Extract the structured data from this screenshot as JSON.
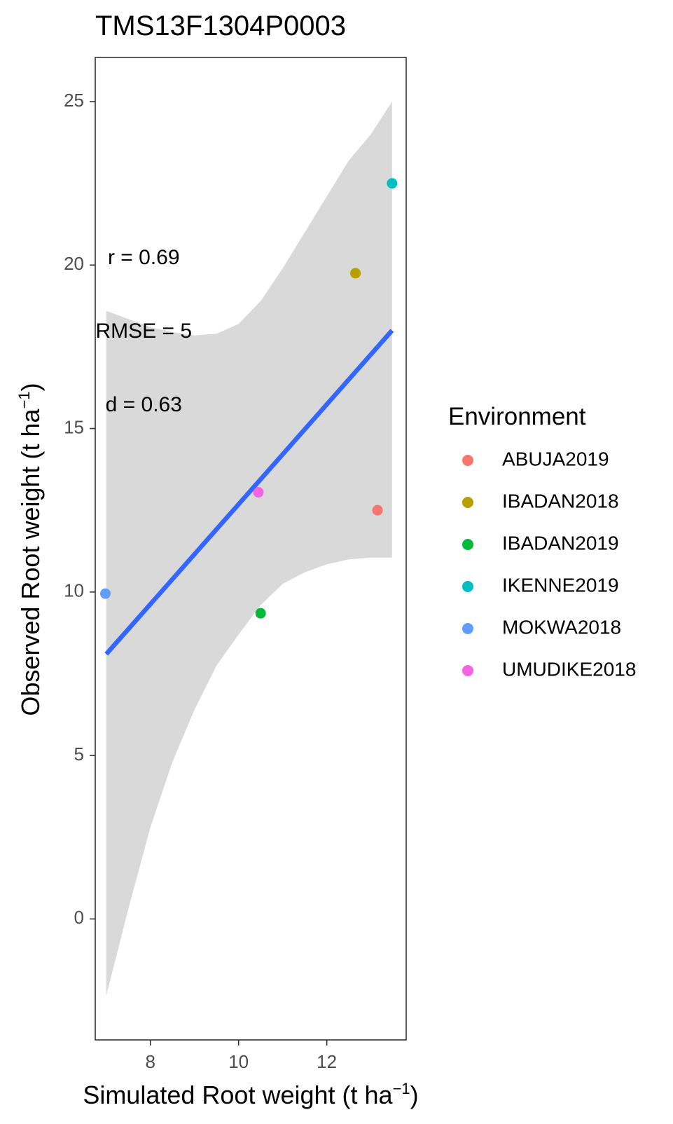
{
  "chart_data": {
    "type": "scatter",
    "title": "TMS13F1304P0003",
    "xlabel": "Simulated Root weight",
    "ylabel": "Observed Root weight",
    "unit": {
      "base": "t ha",
      "exp": "−1"
    },
    "xlim": [
      6.75,
      13.8
    ],
    "ylim": [
      -3.7,
      26.35
    ],
    "xticks": [
      8,
      10,
      12
    ],
    "yticks": [
      0,
      5,
      10,
      15,
      20,
      25
    ],
    "grid": false,
    "legend": {
      "title": "Environment",
      "position": "right"
    },
    "series": [
      {
        "name": "ABUJA2019",
        "color": "#F8766D",
        "points": [
          {
            "x": 13.15,
            "y": 12.5
          }
        ]
      },
      {
        "name": "IBADAN2018",
        "color": "#B79F00",
        "points": [
          {
            "x": 12.65,
            "y": 19.75
          }
        ]
      },
      {
        "name": "IBADAN2019",
        "color": "#00BA38",
        "points": [
          {
            "x": 10.5,
            "y": 9.35
          }
        ]
      },
      {
        "name": "IKENNE2019",
        "color": "#00BFC4",
        "points": [
          {
            "x": 13.48,
            "y": 22.5
          }
        ]
      },
      {
        "name": "MOKWA2018",
        "color": "#619CFF",
        "points": [
          {
            "x": 6.98,
            "y": 9.95
          }
        ]
      },
      {
        "name": "UMUDIKE2018",
        "color": "#F564E3",
        "points": [
          {
            "x": 10.45,
            "y": 13.05
          }
        ]
      }
    ],
    "fit": {
      "color": "#3366FF",
      "line": [
        {
          "x": 7.0,
          "y": 8.1
        },
        {
          "x": 13.48,
          "y": 18.0
        }
      ],
      "ci_band_color": "#d9d9d9",
      "ci_upper": [
        {
          "x": 7.0,
          "y": 18.6
        },
        {
          "x": 7.5,
          "y": 18.35
        },
        {
          "x": 8.0,
          "y": 18.1
        },
        {
          "x": 8.5,
          "y": 17.95
        },
        {
          "x": 9.0,
          "y": 17.85
        },
        {
          "x": 9.5,
          "y": 17.9
        },
        {
          "x": 10.0,
          "y": 18.2
        },
        {
          "x": 10.5,
          "y": 18.9
        },
        {
          "x": 11.0,
          "y": 19.9
        },
        {
          "x": 11.5,
          "y": 21.0
        },
        {
          "x": 12.0,
          "y": 22.1
        },
        {
          "x": 12.5,
          "y": 23.2
        },
        {
          "x": 13.0,
          "y": 24.0
        },
        {
          "x": 13.48,
          "y": 25.0
        }
      ],
      "ci_lower": [
        {
          "x": 7.0,
          "y": -2.35
        },
        {
          "x": 7.5,
          "y": 0.3
        },
        {
          "x": 8.0,
          "y": 2.8
        },
        {
          "x": 8.5,
          "y": 4.8
        },
        {
          "x": 9.0,
          "y": 6.4
        },
        {
          "x": 9.5,
          "y": 7.75
        },
        {
          "x": 10.0,
          "y": 8.7
        },
        {
          "x": 10.5,
          "y": 9.6
        },
        {
          "x": 11.0,
          "y": 10.25
        },
        {
          "x": 11.5,
          "y": 10.6
        },
        {
          "x": 12.0,
          "y": 10.85
        },
        {
          "x": 12.5,
          "y": 11.0
        },
        {
          "x": 13.0,
          "y": 11.05
        },
        {
          "x": 13.48,
          "y": 11.05
        }
      ]
    },
    "annotations": [
      {
        "text": "r = 0.69",
        "x": 7.85,
        "y": 20.2
      },
      {
        "text": "RMSE = 5",
        "x": 7.85,
        "y": 17.95
      },
      {
        "text": "d = 0.63",
        "x": 7.85,
        "y": 15.7
      }
    ]
  }
}
